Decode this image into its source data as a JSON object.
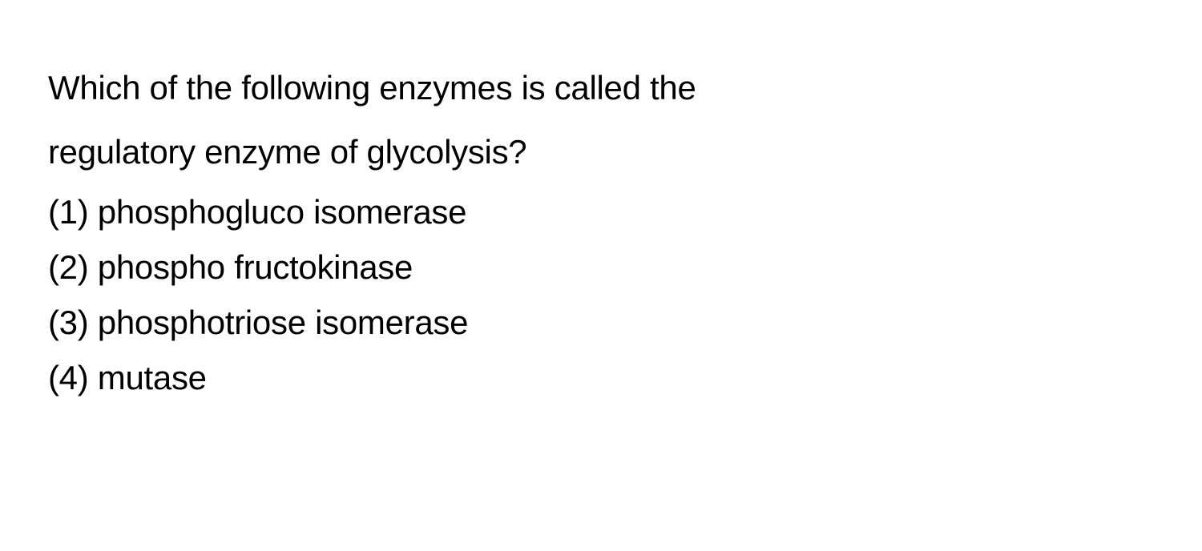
{
  "question": {
    "line1": "Which of the following enzymes is called the",
    "line2": "regulatory enzyme of glycolysis?"
  },
  "options": [
    {
      "label": "(1) phosphogluco isomerase"
    },
    {
      "label": "(2) phospho fructokinase"
    },
    {
      "label": "(3) phosphotriose isomerase"
    },
    {
      "label": "(4) mutase"
    }
  ],
  "styling": {
    "background_color": "#ffffff",
    "text_color": "#000000",
    "font_size": 42,
    "question_line_height": 1.9,
    "option_line_height": 1.65,
    "font_weight": 400
  }
}
